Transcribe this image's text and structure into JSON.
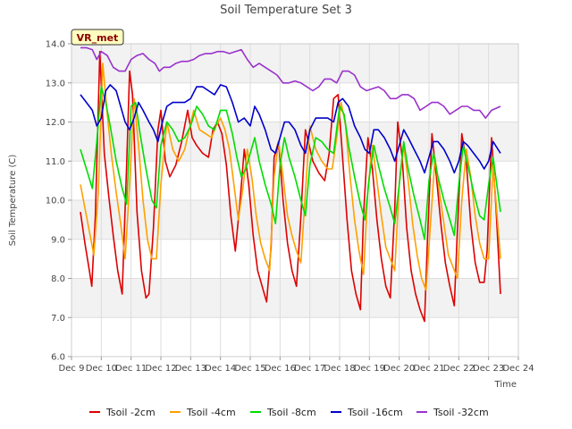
{
  "chart_data": {
    "type": "line",
    "title": "Soil Temperature Set 3",
    "xlabel": "Time",
    "ylabel": "Soil Temperature (C)",
    "ylim": [
      6.0,
      14.0
    ],
    "xlim": [
      9,
      24
    ],
    "y_ticks": [
      "6.0",
      "7.0",
      "8.0",
      "9.0",
      "10.0",
      "11.0",
      "12.0",
      "13.0",
      "14.0"
    ],
    "x_ticks": [
      "Dec 9",
      "Dec 10",
      "Dec 11",
      "Dec 12",
      "Dec 13",
      "Dec 14",
      "Dec 15",
      "Dec 16",
      "Dec 17",
      "Dec 18",
      "Dec 19",
      "Dec 20",
      "Dec 21",
      "Dec 22",
      "Dec 23",
      "Dec 24"
    ],
    "grid": true,
    "background_bands": "alternating light gray",
    "legend_position": "bottom",
    "annotation": "VR_met",
    "series": [
      {
        "name": "Tsoil -2cm",
        "color": "#dd0000",
        "x": [
          9.3,
          9.45,
          9.6,
          9.68,
          9.8,
          9.95,
          10.1,
          10.25,
          10.4,
          10.55,
          10.7,
          10.85,
          10.95,
          11.05,
          11.2,
          11.35,
          11.5,
          11.6,
          11.75,
          11.9,
          12.0,
          12.15,
          12.3,
          12.5,
          12.7,
          12.9,
          13.05,
          13.2,
          13.4,
          13.6,
          13.75,
          13.9,
          14.05,
          14.2,
          14.35,
          14.5,
          14.65,
          14.8,
          14.95,
          15.1,
          15.25,
          15.4,
          15.55,
          15.7,
          15.8,
          15.95,
          16.1,
          16.25,
          16.4,
          16.55,
          16.7,
          16.85,
          16.95,
          17.1,
          17.3,
          17.5,
          17.65,
          17.8,
          17.95,
          18.1,
          18.25,
          18.4,
          18.55,
          18.7,
          18.8,
          18.95,
          19.1,
          19.25,
          19.4,
          19.55,
          19.7,
          19.85,
          19.95,
          20.1,
          20.25,
          20.4,
          20.55,
          20.7,
          20.85,
          20.95,
          21.1,
          21.25,
          21.4,
          21.55,
          21.7,
          21.85,
          21.95,
          22.1,
          22.25,
          22.4,
          22.55,
          22.7,
          22.85,
          22.95,
          23.1,
          23.25,
          23.4
        ],
        "y": [
          9.7,
          8.9,
          8.2,
          7.8,
          9.6,
          13.8,
          11.2,
          10.1,
          9.1,
          8.2,
          7.6,
          10.9,
          13.3,
          12.7,
          9.7,
          8.2,
          7.5,
          7.6,
          9.3,
          11.8,
          12.3,
          11.0,
          10.6,
          10.9,
          11.5,
          12.3,
          11.6,
          11.4,
          11.2,
          11.1,
          11.8,
          12.0,
          11.7,
          10.9,
          9.6,
          8.7,
          9.9,
          11.3,
          10.4,
          9.1,
          8.2,
          7.8,
          7.4,
          8.8,
          11.1,
          11.5,
          10.0,
          8.9,
          8.2,
          7.8,
          9.6,
          11.8,
          11.5,
          11.0,
          10.7,
          10.5,
          11.2,
          12.6,
          12.7,
          11.1,
          9.5,
          8.2,
          7.6,
          7.2,
          9.6,
          11.6,
          10.8,
          9.5,
          8.5,
          7.8,
          7.5,
          9.8,
          12.0,
          11.1,
          9.3,
          8.2,
          7.6,
          7.2,
          6.9,
          9.0,
          11.7,
          10.6,
          9.4,
          8.4,
          7.8,
          7.3,
          9.2,
          11.7,
          11.0,
          9.4,
          8.4,
          7.9,
          7.9,
          8.7,
          11.6,
          9.8,
          7.6
        ]
      },
      {
        "name": "Tsoil -4cm",
        "color": "#ffa000",
        "x": [
          9.3,
          9.45,
          9.6,
          9.75,
          9.9,
          10.05,
          10.2,
          10.35,
          10.5,
          10.65,
          10.8,
          10.95,
          11.1,
          11.25,
          11.4,
          11.55,
          11.7,
          11.85,
          12.0,
          12.2,
          12.4,
          12.6,
          12.8,
          12.95,
          13.1,
          13.3,
          13.5,
          13.7,
          13.85,
          14.0,
          14.15,
          14.3,
          14.45,
          14.6,
          14.75,
          14.9,
          15.05,
          15.2,
          15.35,
          15.5,
          15.65,
          15.8,
          15.95,
          16.1,
          16.25,
          16.4,
          16.55,
          16.7,
          16.85,
          17.0,
          17.2,
          17.4,
          17.6,
          17.75,
          17.9,
          18.05,
          18.2,
          18.35,
          18.5,
          18.65,
          18.8,
          18.95,
          19.1,
          19.25,
          19.4,
          19.55,
          19.7,
          19.85,
          20.0,
          20.15,
          20.3,
          20.45,
          20.6,
          20.75,
          20.9,
          21.05,
          21.2,
          21.35,
          21.5,
          21.65,
          21.8,
          21.95,
          22.1,
          22.25,
          22.4,
          22.55,
          22.7,
          22.85,
          23.0,
          23.15,
          23.4
        ],
        "y": [
          10.4,
          9.8,
          9.2,
          8.6,
          10.2,
          13.5,
          12.2,
          11.1,
          10.2,
          9.4,
          8.5,
          10.4,
          12.6,
          11.4,
          10.0,
          9.0,
          8.5,
          8.5,
          10.4,
          12.0,
          11.3,
          11.0,
          11.3,
          11.8,
          12.3,
          11.8,
          11.7,
          11.6,
          11.9,
          12.1,
          11.8,
          11.3,
          10.4,
          9.5,
          10.3,
          11.3,
          10.6,
          9.6,
          8.9,
          8.5,
          8.2,
          10.6,
          11.5,
          10.6,
          9.6,
          9.1,
          8.7,
          8.4,
          10.2,
          11.9,
          11.3,
          11.0,
          10.8,
          10.8,
          11.6,
          12.5,
          11.9,
          10.6,
          9.5,
          8.7,
          8.1,
          10.3,
          11.4,
          10.5,
          9.6,
          8.8,
          8.5,
          8.2,
          10.4,
          11.4,
          10.5,
          9.4,
          8.6,
          8.0,
          7.7,
          9.4,
          11.1,
          10.2,
          9.4,
          8.6,
          8.3,
          8.0,
          10.0,
          11.3,
          10.6,
          9.6,
          8.9,
          8.5,
          8.5,
          10.9,
          8.5
        ]
      },
      {
        "name": "Tsoil -8cm",
        "color": "#00dd00",
        "x": [
          9.3,
          9.5,
          9.7,
          9.85,
          10.0,
          10.15,
          10.3,
          10.5,
          10.7,
          10.85,
          11.0,
          11.15,
          11.3,
          11.5,
          11.7,
          11.85,
          12.0,
          12.2,
          12.4,
          12.6,
          12.8,
          13.0,
          13.2,
          13.4,
          13.6,
          13.8,
          14.0,
          14.2,
          14.4,
          14.55,
          14.7,
          14.85,
          15.0,
          15.15,
          15.3,
          15.5,
          15.7,
          15.85,
          16.0,
          16.15,
          16.3,
          16.5,
          16.7,
          16.85,
          17.0,
          17.2,
          17.4,
          17.6,
          17.8,
          18.0,
          18.15,
          18.3,
          18.5,
          18.7,
          18.85,
          19.0,
          19.15,
          19.3,
          19.5,
          19.7,
          19.85,
          20.0,
          20.15,
          20.3,
          20.5,
          20.7,
          20.85,
          21.0,
          21.15,
          21.3,
          21.5,
          21.7,
          21.85,
          22.0,
          22.15,
          22.3,
          22.5,
          22.7,
          22.85,
          23.0,
          23.15,
          23.4
        ],
        "y": [
          11.3,
          10.8,
          10.3,
          11.5,
          12.9,
          12.5,
          11.9,
          11.0,
          10.3,
          9.9,
          12.4,
          12.5,
          11.7,
          10.8,
          10.0,
          9.8,
          11.4,
          12.0,
          11.8,
          11.5,
          11.6,
          11.9,
          12.4,
          12.2,
          11.9,
          11.8,
          12.3,
          12.3,
          11.7,
          11.1,
          10.6,
          10.8,
          11.2,
          11.6,
          11.0,
          10.4,
          9.9,
          9.4,
          10.9,
          11.6,
          11.1,
          10.6,
          10.0,
          9.6,
          10.9,
          11.6,
          11.5,
          11.3,
          11.2,
          12.4,
          12.2,
          11.4,
          10.6,
          9.9,
          9.5,
          10.6,
          11.4,
          10.9,
          10.3,
          9.8,
          9.4,
          10.4,
          11.5,
          10.8,
          10.1,
          9.5,
          9.0,
          10.5,
          11.2,
          10.6,
          10.0,
          9.5,
          9.1,
          10.4,
          11.4,
          10.9,
          10.2,
          9.6,
          9.5,
          10.4,
          11.1,
          9.7
        ]
      },
      {
        "name": "Tsoil -16cm",
        "color": "#0000cc",
        "x": [
          9.3,
          9.5,
          9.7,
          9.85,
          10.0,
          10.15,
          10.3,
          10.5,
          10.65,
          10.8,
          10.95,
          11.1,
          11.25,
          11.4,
          11.6,
          11.75,
          11.9,
          12.05,
          12.2,
          12.4,
          12.6,
          12.8,
          13.0,
          13.2,
          13.4,
          13.6,
          13.8,
          14.0,
          14.2,
          14.4,
          14.6,
          14.8,
          15.0,
          15.15,
          15.3,
          15.5,
          15.7,
          15.85,
          16.0,
          16.15,
          16.3,
          16.5,
          16.7,
          16.85,
          17.0,
          17.2,
          17.4,
          17.6,
          17.8,
          17.95,
          18.1,
          18.3,
          18.5,
          18.7,
          18.85,
          19.0,
          19.15,
          19.3,
          19.5,
          19.7,
          19.85,
          20.0,
          20.15,
          20.3,
          20.5,
          20.7,
          20.85,
          21.0,
          21.15,
          21.3,
          21.5,
          21.7,
          21.85,
          22.0,
          22.15,
          22.3,
          22.5,
          22.7,
          22.85,
          23.0,
          23.15,
          23.4
        ],
        "y": [
          12.7,
          12.5,
          12.3,
          11.9,
          12.1,
          12.8,
          12.95,
          12.8,
          12.4,
          12.0,
          11.8,
          12.1,
          12.5,
          12.3,
          12.0,
          11.8,
          11.5,
          12.0,
          12.4,
          12.5,
          12.5,
          12.5,
          12.6,
          12.9,
          12.9,
          12.8,
          12.7,
          12.95,
          12.9,
          12.5,
          12.0,
          12.1,
          11.9,
          12.4,
          12.2,
          11.8,
          11.3,
          11.2,
          11.6,
          12.0,
          12.0,
          11.8,
          11.4,
          11.2,
          11.8,
          12.1,
          12.1,
          12.1,
          12.0,
          12.5,
          12.6,
          12.4,
          11.9,
          11.6,
          11.3,
          11.2,
          11.8,
          11.8,
          11.6,
          11.3,
          11.0,
          11.4,
          11.8,
          11.6,
          11.3,
          11.0,
          10.7,
          11.1,
          11.5,
          11.5,
          11.3,
          11.0,
          10.7,
          11.0,
          11.5,
          11.4,
          11.2,
          11.0,
          10.8,
          11.0,
          11.5,
          11.2
        ]
      },
      {
        "name": "Tsoil -32cm",
        "color": "#9932cc",
        "x": [
          9.3,
          9.5,
          9.7,
          9.85,
          10.0,
          10.2,
          10.4,
          10.6,
          10.8,
          11.0,
          11.2,
          11.4,
          11.6,
          11.8,
          11.95,
          12.1,
          12.3,
          12.5,
          12.7,
          12.9,
          13.1,
          13.3,
          13.5,
          13.7,
          13.9,
          14.1,
          14.3,
          14.5,
          14.7,
          14.9,
          15.1,
          15.3,
          15.5,
          15.7,
          15.9,
          16.1,
          16.3,
          16.5,
          16.7,
          16.9,
          17.1,
          17.3,
          17.5,
          17.7,
          17.9,
          18.1,
          18.3,
          18.5,
          18.7,
          18.9,
          19.1,
          19.3,
          19.5,
          19.7,
          19.9,
          20.1,
          20.3,
          20.5,
          20.7,
          20.9,
          21.1,
          21.3,
          21.5,
          21.7,
          21.9,
          22.1,
          22.3,
          22.5,
          22.7,
          22.9,
          23.1,
          23.4
        ],
        "y": [
          13.9,
          13.9,
          13.85,
          13.6,
          13.8,
          13.7,
          13.4,
          13.3,
          13.3,
          13.6,
          13.7,
          13.75,
          13.6,
          13.5,
          13.3,
          13.4,
          13.4,
          13.5,
          13.55,
          13.55,
          13.6,
          13.7,
          13.75,
          13.75,
          13.8,
          13.8,
          13.75,
          13.8,
          13.85,
          13.6,
          13.4,
          13.5,
          13.4,
          13.3,
          13.2,
          13.0,
          13.0,
          13.05,
          13.0,
          12.9,
          12.8,
          12.9,
          13.1,
          13.1,
          13.0,
          13.3,
          13.3,
          13.2,
          12.9,
          12.8,
          12.85,
          12.9,
          12.8,
          12.6,
          12.6,
          12.7,
          12.7,
          12.6,
          12.3,
          12.4,
          12.5,
          12.5,
          12.4,
          12.2,
          12.3,
          12.4,
          12.4,
          12.3,
          12.3,
          12.1,
          12.3,
          12.4
        ]
      }
    ]
  }
}
